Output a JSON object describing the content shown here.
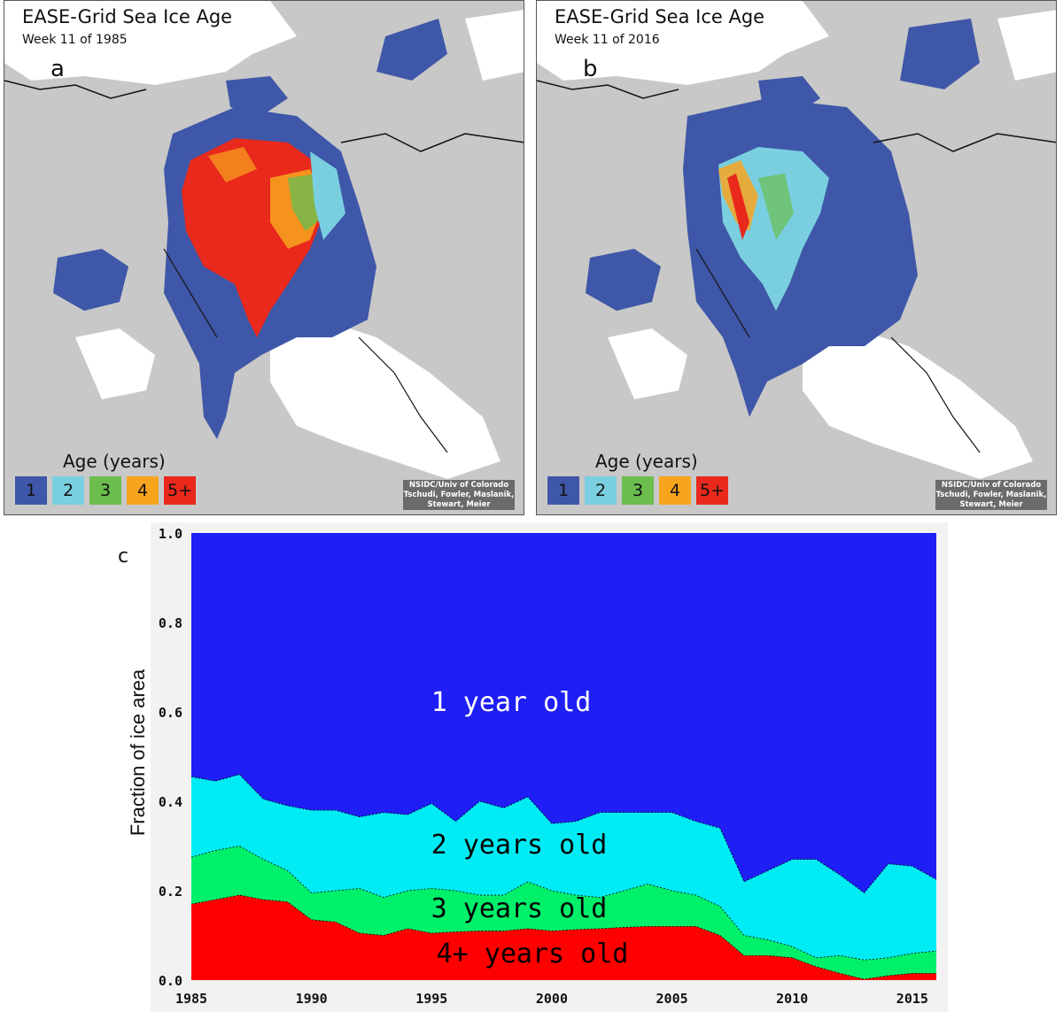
{
  "maps": [
    {
      "title": "EASE-Grid Sea Ice Age",
      "week": "Week 11 of 1985",
      "letter": "a",
      "legend_title": "Age (years)",
      "legend": [
        "1",
        "2",
        "3",
        "4",
        "5+"
      ],
      "credit": [
        "NSIDC/Univ of Colorado",
        "Tschudi, Fowler, Maslanik,",
        "Stewart, Meier"
      ]
    },
    {
      "title": "EASE-Grid Sea Ice Age",
      "week": "Week 11 of 2016",
      "letter": "b",
      "legend_title": "Age (years)",
      "legend": [
        "1",
        "2",
        "3",
        "4",
        "5+"
      ],
      "credit": [
        "NSIDC/Univ of Colorado",
        "Tschudi, Fowler, Maslanik,",
        "Stewart, Meier"
      ]
    }
  ],
  "colors": {
    "age_1": "#3f57a8",
    "age_2": "#79cfe0",
    "age_3": "#6bbd4e",
    "age_4": "#f8a51e",
    "age_5": "#e8291c",
    "land": "#c8c8c8",
    "water": "#ffffff",
    "c_1yr": "#1e1ef5",
    "c_2yr": "#00ecf5",
    "c_3yr": "#00f06a",
    "c_4yr": "#ff0000"
  },
  "chart_data": {
    "type": "area",
    "letter": "c",
    "ylabel": "Fraction of ice area",
    "xlabel": "",
    "xlim": [
      1985,
      2016
    ],
    "ylim": [
      0.0,
      1.0
    ],
    "x_ticks": [
      "1985",
      "1990",
      "1995",
      "2000",
      "2005",
      "2010",
      "2015"
    ],
    "y_ticks": [
      "0.0",
      "0.2",
      "0.4",
      "0.6",
      "0.8",
      "1.0"
    ],
    "x": [
      1985,
      1986,
      1987,
      1988,
      1989,
      1990,
      1991,
      1992,
      1993,
      1994,
      1995,
      1996,
      1997,
      1998,
      1999,
      2000,
      2001,
      2002,
      2003,
      2004,
      2005,
      2006,
      2007,
      2008,
      2009,
      2010,
      2011,
      2012,
      2013,
      2014,
      2015,
      2016
    ],
    "series": [
      {
        "name": "4+ years old",
        "values": [
          0.17,
          0.18,
          0.19,
          0.18,
          0.175,
          0.135,
          0.13,
          0.105,
          0.1,
          0.115,
          0.105,
          0.108,
          0.11,
          0.11,
          0.115,
          0.11,
          0.113,
          0.115,
          0.118,
          0.12,
          0.12,
          0.12,
          0.1,
          0.055,
          0.055,
          0.05,
          0.03,
          0.015,
          0.002,
          0.01,
          0.015,
          0.015
        ]
      },
      {
        "name": "3 years old",
        "values": [
          0.275,
          0.29,
          0.3,
          0.27,
          0.245,
          0.195,
          0.2,
          0.205,
          0.185,
          0.2,
          0.205,
          0.2,
          0.19,
          0.19,
          0.22,
          0.2,
          0.19,
          0.185,
          0.2,
          0.215,
          0.2,
          0.19,
          0.165,
          0.1,
          0.09,
          0.075,
          0.05,
          0.055,
          0.045,
          0.05,
          0.06,
          0.065
        ]
      },
      {
        "name": "2 years old",
        "values": [
          0.455,
          0.445,
          0.46,
          0.405,
          0.39,
          0.38,
          0.38,
          0.365,
          0.375,
          0.37,
          0.395,
          0.355,
          0.4,
          0.385,
          0.41,
          0.35,
          0.355,
          0.375,
          0.375,
          0.375,
          0.375,
          0.355,
          0.34,
          0.22,
          0.245,
          0.27,
          0.27,
          0.235,
          0.195,
          0.26,
          0.255,
          0.225
        ]
      },
      {
        "name": "1 year old",
        "values": [
          1.0,
          1.0,
          1.0,
          1.0,
          1.0,
          1.0,
          1.0,
          1.0,
          1.0,
          1.0,
          1.0,
          1.0,
          1.0,
          1.0,
          1.0,
          1.0,
          1.0,
          1.0,
          1.0,
          1.0,
          1.0,
          1.0,
          1.0,
          1.0,
          1.0,
          1.0,
          1.0,
          1.0,
          1.0,
          1.0,
          1.0,
          1.0
        ]
      }
    ],
    "labels": [
      "1 year old",
      "2 years old",
      "3 years old",
      "4+ years old"
    ]
  }
}
